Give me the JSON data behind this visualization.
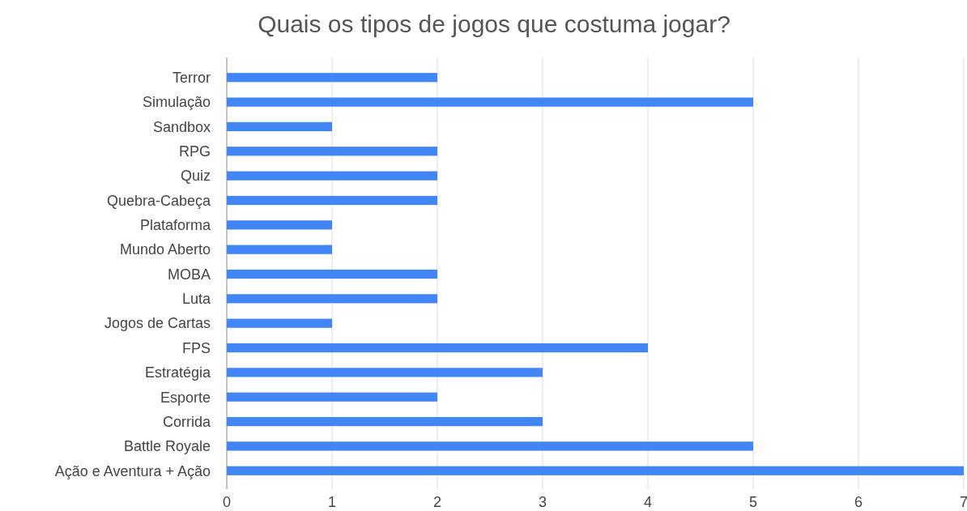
{
  "chart_data": {
    "type": "bar",
    "orientation": "horizontal",
    "title": "Quais os tipos de jogos que costuma jogar?",
    "categories": [
      "Terror",
      "Simulação",
      "Sandbox",
      "RPG",
      "Quiz",
      "Quebra-Cabeça",
      "Plataforma",
      "Mundo Aberto",
      "MOBA",
      "Luta",
      "Jogos de Cartas",
      "FPS",
      "Estratégia",
      "Esporte",
      "Corrida",
      "Battle Royale",
      "Ação e Aventura + Ação"
    ],
    "values": [
      2,
      5,
      1,
      2,
      2,
      2,
      1,
      1,
      2,
      2,
      1,
      4,
      3,
      2,
      3,
      5,
      7
    ],
    "color": "#4285f4",
    "xlim": [
      0,
      7
    ],
    "xticks": [
      0,
      1,
      2,
      3,
      4,
      5,
      6,
      7
    ],
    "grid": "x"
  }
}
